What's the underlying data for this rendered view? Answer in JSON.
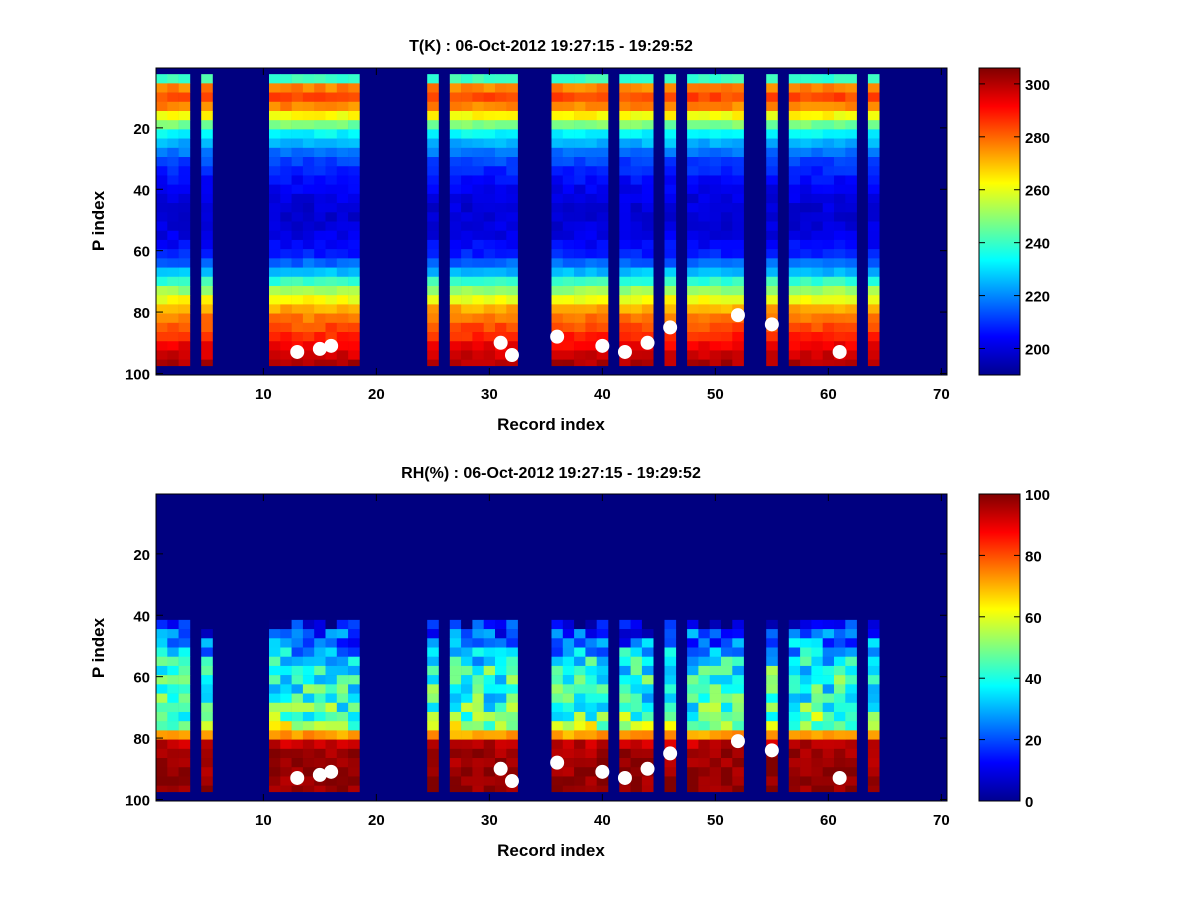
{
  "chart_data": [
    {
      "type": "heatmap",
      "title": "T(K) : 06-Oct-2012 19:27:15 - 19:29:52",
      "xlabel": "Record index",
      "ylabel": "P index",
      "xlim": [
        0.5,
        70.5
      ],
      "ylim": [
        0.5,
        100.5
      ],
      "y_reversed": true,
      "xticks": [
        10,
        20,
        30,
        40,
        50,
        60,
        70
      ],
      "yticks": [
        20,
        40,
        60,
        80,
        100
      ],
      "colorbar": {
        "min": 190,
        "max": 306,
        "ticks": [
          200,
          220,
          240,
          260,
          280,
          300
        ]
      },
      "background_value": 190,
      "profile": {
        "p_index": [
          3,
          5,
          8,
          12,
          16,
          20,
          25,
          30,
          35,
          40,
          45,
          50,
          55,
          60,
          63,
          66,
          70,
          74,
          78,
          82,
          86,
          90,
          94,
          97
        ],
        "T": [
          240,
          272,
          286,
          276,
          258,
          236,
          222,
          212,
          206,
          202,
          200,
          200,
          202,
          208,
          216,
          226,
          244,
          258,
          272,
          280,
          286,
          293,
          298,
          302
        ]
      },
      "records_with_data": [
        1,
        2,
        3,
        5,
        11,
        12,
        13,
        14,
        15,
        16,
        17,
        18,
        25,
        27,
        28,
        29,
        30,
        31,
        32,
        36,
        37,
        38,
        39,
        40,
        42,
        43,
        44,
        46,
        48,
        49,
        50,
        51,
        52,
        55,
        57,
        58,
        59,
        60,
        61,
        62,
        64
      ],
      "surface_points": {
        "record": [
          13,
          15,
          16,
          31,
          32,
          36,
          40,
          42,
          44,
          46,
          52,
          55,
          61
        ],
        "p_index": [
          93,
          92,
          91,
          90,
          94,
          88,
          91,
          93,
          90,
          85,
          81,
          84,
          93
        ]
      }
    },
    {
      "type": "heatmap",
      "title": "RH(%) : 06-Oct-2012 19:27:15 - 19:29:52",
      "xlabel": "Record index",
      "ylabel": "P index",
      "xlim": [
        0.5,
        70.5
      ],
      "ylim": [
        0.5,
        100.5
      ],
      "y_reversed": true,
      "xticks": [
        10,
        20,
        30,
        40,
        50,
        60,
        70
      ],
      "yticks": [
        20,
        40,
        60,
        80,
        100
      ],
      "colorbar": {
        "min": 0,
        "max": 100,
        "ticks": [
          0,
          20,
          40,
          60,
          80,
          100
        ]
      },
      "background_value": 0,
      "profile": {
        "p_index": [
          1,
          41,
          42,
          45,
          50,
          55,
          60,
          65,
          70,
          74,
          77,
          79,
          81,
          84,
          88,
          97
        ],
        "RH": [
          0,
          0,
          10,
          18,
          28,
          40,
          42,
          40,
          44,
          50,
          62,
          82,
          94,
          97,
          98,
          99
        ]
      },
      "records_with_data": [
        1,
        2,
        3,
        5,
        11,
        12,
        13,
        14,
        15,
        16,
        17,
        18,
        25,
        27,
        28,
        29,
        30,
        31,
        32,
        36,
        37,
        38,
        39,
        40,
        42,
        43,
        44,
        46,
        48,
        49,
        50,
        51,
        52,
        55,
        57,
        58,
        59,
        60,
        61,
        62,
        64
      ],
      "surface_points": {
        "record": [
          13,
          15,
          16,
          31,
          32,
          36,
          40,
          42,
          44,
          46,
          52,
          55,
          61
        ],
        "p_index": [
          93,
          92,
          91,
          90,
          94,
          88,
          91,
          93,
          90,
          85,
          81,
          84,
          93
        ]
      }
    }
  ]
}
